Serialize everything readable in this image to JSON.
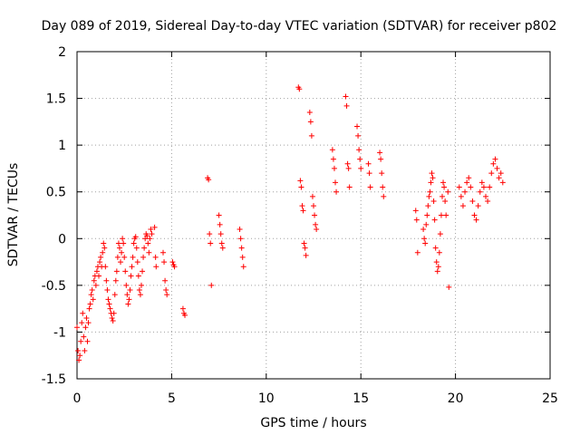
{
  "chart_data": {
    "type": "scatter",
    "title": "Day 089 of 2019, Sidereal Day-to-day VTEC variation (SDTVAR) for receiver p802",
    "xlabel": "GPS time / hours",
    "ylabel": "SDTVAR / TECUs",
    "xlim": [
      0,
      25
    ],
    "ylim": [
      -1.5,
      2
    ],
    "xticks": [
      0,
      5,
      10,
      15,
      20,
      25
    ],
    "yticks": [
      -1.5,
      -1,
      -0.5,
      0,
      0.5,
      1,
      1.5,
      2
    ],
    "grid": true,
    "legend": "none",
    "marker": "plus",
    "color": "#ff0000",
    "series": [
      {
        "name": "p802",
        "points": [
          [
            0.0,
            -0.95
          ],
          [
            0.05,
            -1.2
          ],
          [
            0.1,
            -1.3
          ],
          [
            0.15,
            -1.25
          ],
          [
            0.2,
            -1.1
          ],
          [
            0.25,
            -0.9
          ],
          [
            0.3,
            -0.8
          ],
          [
            0.35,
            -1.05
          ],
          [
            0.4,
            -1.2
          ],
          [
            0.45,
            -0.95
          ],
          [
            0.5,
            -0.85
          ],
          [
            0.55,
            -1.1
          ],
          [
            0.6,
            -0.9
          ],
          [
            0.65,
            -0.75
          ],
          [
            0.7,
            -0.7
          ],
          [
            0.75,
            -0.6
          ],
          [
            0.8,
            -0.55
          ],
          [
            0.85,
            -0.65
          ],
          [
            0.9,
            -0.45
          ],
          [
            0.95,
            -0.4
          ],
          [
            1.0,
            -0.5
          ],
          [
            1.05,
            -0.35
          ],
          [
            1.1,
            -0.3
          ],
          [
            1.15,
            -0.4
          ],
          [
            1.2,
            -0.25
          ],
          [
            1.25,
            -0.2
          ],
          [
            1.3,
            -0.3
          ],
          [
            1.35,
            -0.15
          ],
          [
            1.4,
            -0.05
          ],
          [
            1.45,
            -0.1
          ],
          [
            1.5,
            -0.3
          ],
          [
            1.55,
            -0.45
          ],
          [
            1.6,
            -0.55
          ],
          [
            1.65,
            -0.65
          ],
          [
            1.7,
            -0.7
          ],
          [
            1.75,
            -0.75
          ],
          [
            1.8,
            -0.8
          ],
          [
            1.85,
            -0.85
          ],
          [
            1.9,
            -0.88
          ],
          [
            1.95,
            -0.8
          ],
          [
            2.0,
            -0.6
          ],
          [
            2.05,
            -0.45
          ],
          [
            2.1,
            -0.35
          ],
          [
            2.15,
            -0.2
          ],
          [
            2.2,
            -0.05
          ],
          [
            2.25,
            -0.1
          ],
          [
            2.3,
            -0.25
          ],
          [
            2.35,
            -0.15
          ],
          [
            2.4,
            0.0
          ],
          [
            2.45,
            -0.05
          ],
          [
            2.5,
            -0.2
          ],
          [
            2.55,
            -0.35
          ],
          [
            2.6,
            -0.5
          ],
          [
            2.65,
            -0.6
          ],
          [
            2.7,
            -0.7
          ],
          [
            2.75,
            -0.65
          ],
          [
            2.8,
            -0.55
          ],
          [
            2.85,
            -0.4
          ],
          [
            2.9,
            -0.3
          ],
          [
            2.95,
            -0.2
          ],
          [
            3.0,
            -0.05
          ],
          [
            3.05,
            0.0
          ],
          [
            3.1,
            0.02
          ],
          [
            3.15,
            -0.1
          ],
          [
            3.2,
            -0.25
          ],
          [
            3.25,
            -0.4
          ],
          [
            3.3,
            -0.55
          ],
          [
            3.35,
            -0.6
          ],
          [
            3.4,
            -0.5
          ],
          [
            3.45,
            -0.35
          ],
          [
            3.5,
            -0.2
          ],
          [
            3.55,
            -0.1
          ],
          [
            3.6,
            0.0
          ],
          [
            3.65,
            0.05
          ],
          [
            3.7,
            0.03
          ],
          [
            3.75,
            -0.05
          ],
          [
            3.8,
            -0.15
          ],
          [
            3.85,
            0.0
          ],
          [
            3.9,
            0.1
          ],
          [
            3.95,
            0.05
          ],
          [
            4.1,
            0.12
          ],
          [
            4.15,
            -0.2
          ],
          [
            4.18,
            -0.3
          ],
          [
            4.55,
            -0.15
          ],
          [
            4.6,
            -0.25
          ],
          [
            4.65,
            -0.45
          ],
          [
            4.7,
            -0.55
          ],
          [
            4.75,
            -0.6
          ],
          [
            5.05,
            -0.25
          ],
          [
            5.1,
            -0.28
          ],
          [
            5.15,
            -0.3
          ],
          [
            5.6,
            -0.75
          ],
          [
            5.65,
            -0.8
          ],
          [
            5.7,
            -0.82
          ],
          [
            6.9,
            0.65
          ],
          [
            6.95,
            0.63
          ],
          [
            7.0,
            0.05
          ],
          [
            7.05,
            -0.05
          ],
          [
            7.1,
            -0.5
          ],
          [
            7.5,
            0.25
          ],
          [
            7.55,
            0.15
          ],
          [
            7.6,
            0.05
          ],
          [
            7.65,
            -0.05
          ],
          [
            7.7,
            -0.1
          ],
          [
            8.6,
            0.1
          ],
          [
            8.65,
            0.0
          ],
          [
            8.7,
            -0.1
          ],
          [
            8.75,
            -0.2
          ],
          [
            8.8,
            -0.3
          ],
          [
            11.7,
            1.62
          ],
          [
            11.75,
            1.6
          ],
          [
            11.8,
            0.62
          ],
          [
            11.85,
            0.55
          ],
          [
            11.9,
            0.35
          ],
          [
            11.95,
            0.3
          ],
          [
            12.0,
            -0.05
          ],
          [
            12.05,
            -0.1
          ],
          [
            12.1,
            -0.18
          ],
          [
            12.3,
            1.35
          ],
          [
            12.35,
            1.25
          ],
          [
            12.4,
            1.1
          ],
          [
            12.45,
            0.45
          ],
          [
            12.5,
            0.35
          ],
          [
            12.55,
            0.25
          ],
          [
            12.6,
            0.15
          ],
          [
            12.65,
            0.1
          ],
          [
            13.5,
            0.95
          ],
          [
            13.55,
            0.85
          ],
          [
            13.6,
            0.75
          ],
          [
            13.65,
            0.6
          ],
          [
            13.7,
            0.5
          ],
          [
            14.2,
            1.52
          ],
          [
            14.25,
            1.42
          ],
          [
            14.3,
            0.8
          ],
          [
            14.35,
            0.75
          ],
          [
            14.4,
            0.55
          ],
          [
            14.8,
            1.2
          ],
          [
            14.85,
            1.1
          ],
          [
            14.9,
            0.95
          ],
          [
            14.95,
            0.85
          ],
          [
            15.0,
            0.75
          ],
          [
            15.4,
            0.8
          ],
          [
            15.45,
            0.7
          ],
          [
            15.5,
            0.55
          ],
          [
            16.0,
            0.92
          ],
          [
            16.05,
            0.85
          ],
          [
            16.1,
            0.7
          ],
          [
            16.15,
            0.55
          ],
          [
            16.2,
            0.45
          ],
          [
            17.9,
            0.3
          ],
          [
            17.95,
            0.2
          ],
          [
            18.0,
            -0.15
          ],
          [
            18.3,
            0.1
          ],
          [
            18.35,
            0.0
          ],
          [
            18.4,
            -0.05
          ],
          [
            18.45,
            0.15
          ],
          [
            18.5,
            0.25
          ],
          [
            18.55,
            0.35
          ],
          [
            18.6,
            0.45
          ],
          [
            18.65,
            0.5
          ],
          [
            18.7,
            0.6
          ],
          [
            18.75,
            0.7
          ],
          [
            18.8,
            0.65
          ],
          [
            18.85,
            0.4
          ],
          [
            18.9,
            0.2
          ],
          [
            18.95,
            -0.1
          ],
          [
            19.0,
            -0.25
          ],
          [
            19.05,
            -0.35
          ],
          [
            19.1,
            -0.3
          ],
          [
            19.15,
            -0.15
          ],
          [
            19.2,
            0.05
          ],
          [
            19.25,
            0.25
          ],
          [
            19.3,
            0.45
          ],
          [
            19.35,
            0.6
          ],
          [
            19.4,
            0.55
          ],
          [
            19.45,
            0.4
          ],
          [
            19.5,
            0.25
          ],
          [
            19.6,
            0.5
          ],
          [
            19.65,
            -0.52
          ],
          [
            20.2,
            0.55
          ],
          [
            20.3,
            0.45
          ],
          [
            20.4,
            0.35
          ],
          [
            20.5,
            0.5
          ],
          [
            20.6,
            0.6
          ],
          [
            20.7,
            0.65
          ],
          [
            20.8,
            0.55
          ],
          [
            20.9,
            0.4
          ],
          [
            21.0,
            0.25
          ],
          [
            21.1,
            0.2
          ],
          [
            21.2,
            0.35
          ],
          [
            21.3,
            0.5
          ],
          [
            21.4,
            0.6
          ],
          [
            21.5,
            0.55
          ],
          [
            21.6,
            0.45
          ],
          [
            21.7,
            0.4
          ],
          [
            21.8,
            0.55
          ],
          [
            21.9,
            0.7
          ],
          [
            22.0,
            0.8
          ],
          [
            22.1,
            0.85
          ],
          [
            22.2,
            0.75
          ],
          [
            22.3,
            0.65
          ],
          [
            22.4,
            0.7
          ],
          [
            22.5,
            0.6
          ]
        ]
      }
    ]
  }
}
